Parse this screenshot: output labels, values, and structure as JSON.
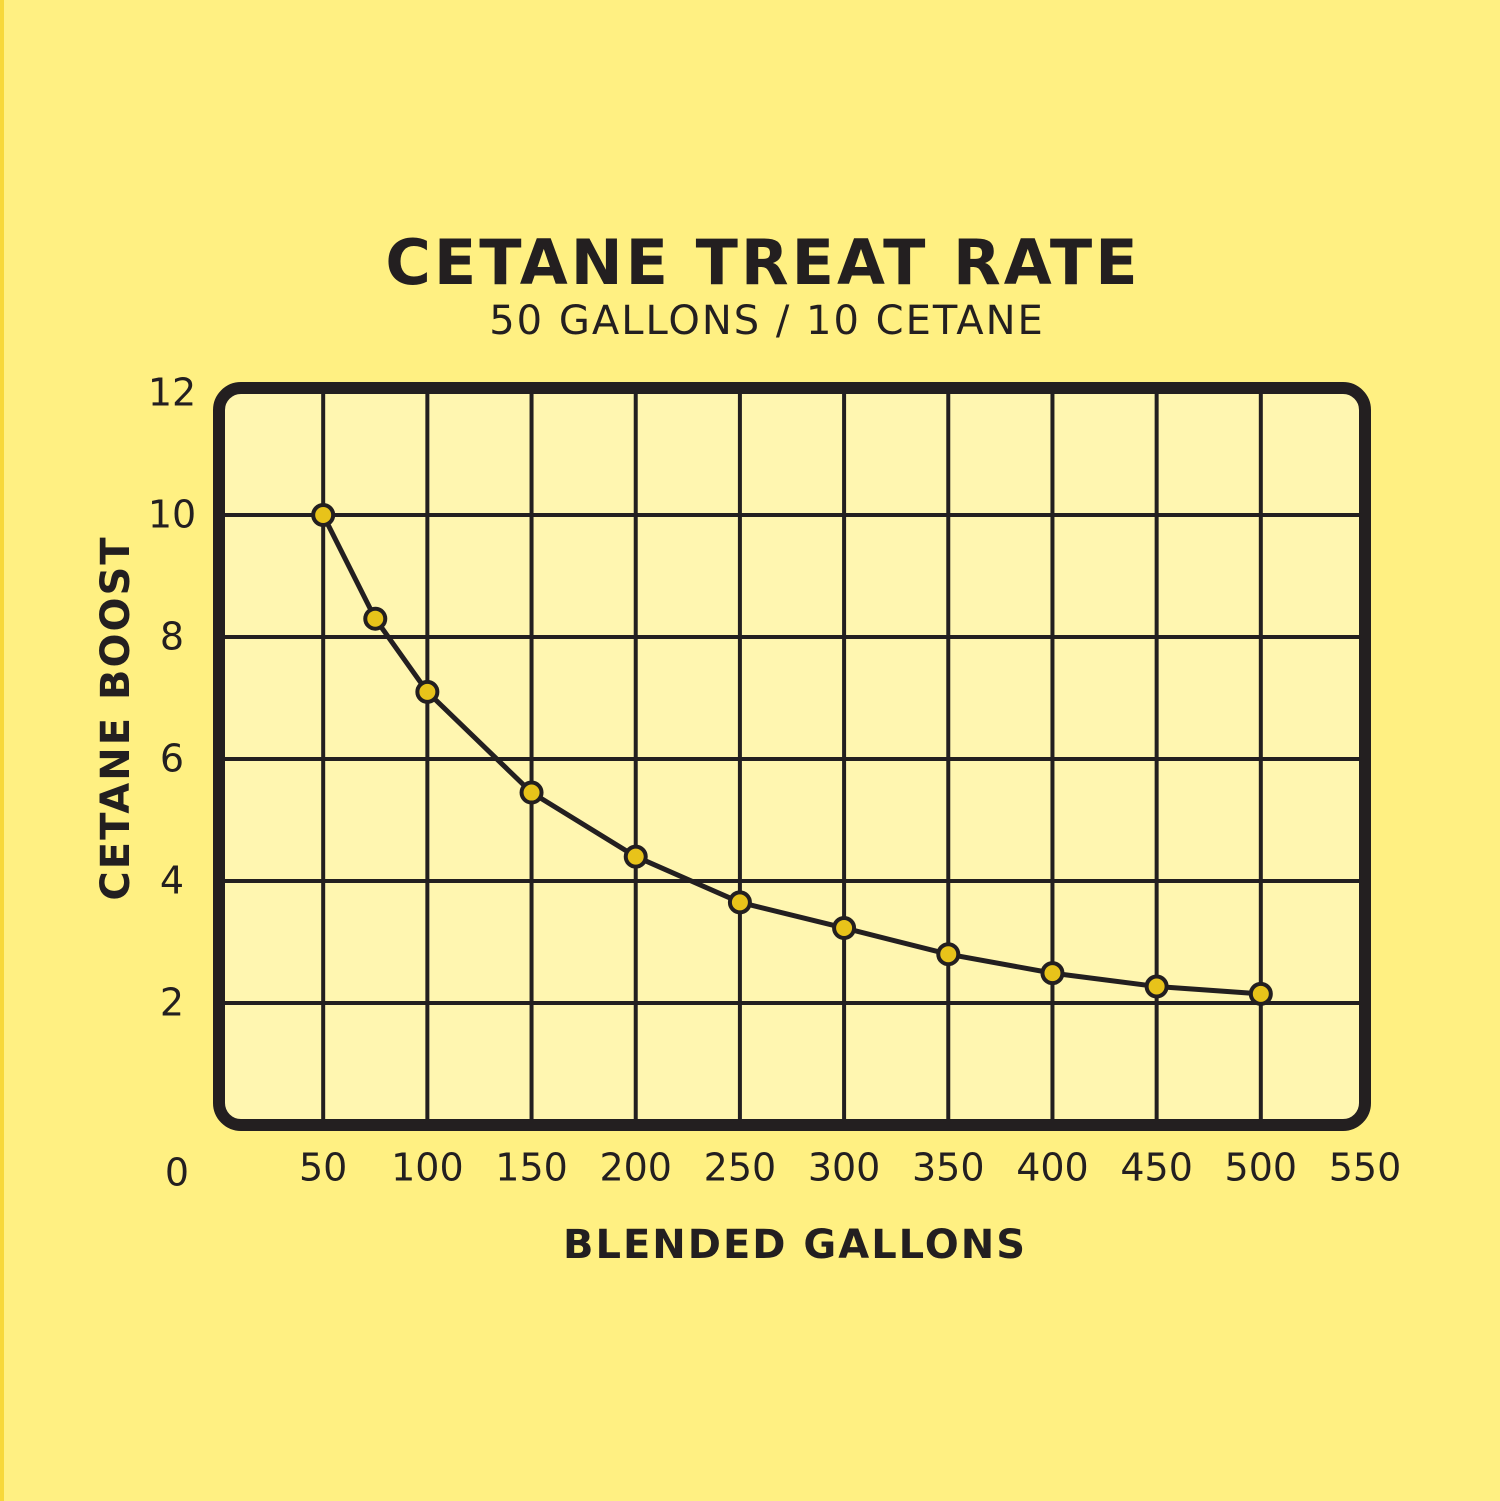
{
  "chart_data": {
    "type": "line",
    "title": "CETANE TREAT RATE",
    "subtitle": "50 GALLONS / 10 CETANE",
    "x_label": "BLENDED GALLONS",
    "y_label": "CETANE BOOST",
    "x": [
      50,
      75,
      100,
      150,
      200,
      250,
      300,
      350,
      400,
      450,
      500
    ],
    "series": [
      {
        "color": "#e8c31a",
        "values": [
          10,
          8.3,
          7.1,
          5.45,
          4.4,
          3.65,
          3.23,
          2.8,
          2.49,
          2.27,
          2.15
        ]
      }
    ],
    "xlim": [
      0,
      550
    ],
    "xticks": [
      50,
      100,
      150,
      200,
      250,
      300,
      350,
      400,
      450,
      500,
      550
    ],
    "ylim": [
      0,
      12
    ],
    "yticks": [
      0,
      2,
      4,
      6,
      8,
      10,
      12
    ],
    "grid": true
  }
}
